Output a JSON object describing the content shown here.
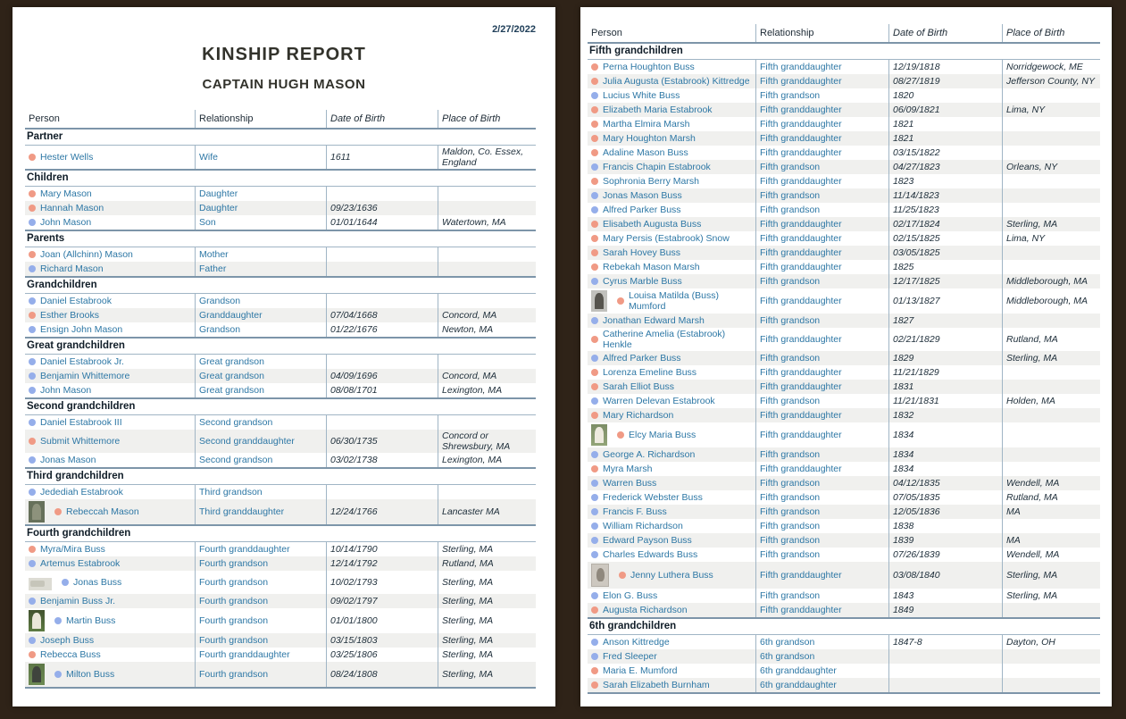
{
  "doc": {
    "date": "2/27/2022",
    "title": "KINSHIP REPORT",
    "subtitle": "CAPTAIN HUGH MASON"
  },
  "columns": [
    "Person",
    "Relationship",
    "Date of Birth",
    "Place of Birth"
  ],
  "colors": {
    "female_dot": "#f09a85",
    "male_dot": "#95aeea",
    "name_text": "#2d77a5",
    "dark_text": "#20303c",
    "line_thick": "#7d95a9",
    "line_thin": "#a0b5c5",
    "row_stripe": "#f0f0ee",
    "page_background": "#2f2318"
  },
  "left_page": {
    "sections": [
      {
        "title": "Partner",
        "rows": [
          {
            "name": "Hester Wells",
            "gender": "f",
            "relationship": "Wife",
            "date_of_birth": "1611",
            "place_of_birth": "Maldon, Co. Essex, England"
          }
        ]
      },
      {
        "title": "Children",
        "rows": [
          {
            "name": "Mary Mason",
            "gender": "f",
            "relationship": "Daughter",
            "date_of_birth": "",
            "place_of_birth": ""
          },
          {
            "name": "Hannah Mason",
            "gender": "f",
            "relationship": "Daughter",
            "date_of_birth": "09/23/1636",
            "place_of_birth": ""
          },
          {
            "name": "John Mason",
            "gender": "m",
            "relationship": "Son",
            "date_of_birth": "01/01/1644",
            "place_of_birth": "Watertown, MA"
          }
        ]
      },
      {
        "title": "Parents",
        "rows": [
          {
            "name": "Joan (Allchinn) Mason",
            "gender": "f",
            "relationship": "Mother",
            "date_of_birth": "",
            "place_of_birth": ""
          },
          {
            "name": "Richard Mason",
            "gender": "m",
            "relationship": "Father",
            "date_of_birth": "",
            "place_of_birth": ""
          }
        ]
      },
      {
        "title": "Grandchildren",
        "rows": [
          {
            "name": "Daniel Estabrook",
            "gender": "m",
            "relationship": "Grandson",
            "date_of_birth": "",
            "place_of_birth": ""
          },
          {
            "name": "Esther Brooks",
            "gender": "f",
            "relationship": "Granddaughter",
            "date_of_birth": "07/04/1668",
            "place_of_birth": "Concord, MA"
          },
          {
            "name": "Ensign John Mason",
            "gender": "m",
            "relationship": "Grandson",
            "date_of_birth": "01/22/1676",
            "place_of_birth": "Newton, MA"
          }
        ]
      },
      {
        "title": "Great grandchildren",
        "rows": [
          {
            "name": "Daniel Estabrook Jr.",
            "gender": "m",
            "relationship": "Great grandson",
            "date_of_birth": "",
            "place_of_birth": ""
          },
          {
            "name": "Benjamin Whittemore",
            "gender": "m",
            "relationship": "Great grandson",
            "date_of_birth": "04/09/1696",
            "place_of_birth": "Concord, MA"
          },
          {
            "name": "John Mason",
            "gender": "m",
            "relationship": "Great grandson",
            "date_of_birth": "08/08/1701",
            "place_of_birth": "Lexington, MA"
          }
        ]
      },
      {
        "title": "Second grandchildren",
        "rows": [
          {
            "name": "Daniel Estabrook III",
            "gender": "m",
            "relationship": "Second grandson",
            "date_of_birth": "",
            "place_of_birth": ""
          },
          {
            "name": "Submit Whittemore",
            "gender": "f",
            "relationship": "Second granddaughter",
            "date_of_birth": "06/30/1735",
            "place_of_birth": "Concord or Shrewsbury, MA"
          },
          {
            "name": "Jonas Mason",
            "gender": "m",
            "relationship": "Second grandson",
            "date_of_birth": "03/02/1738",
            "place_of_birth": "Lexington, MA"
          }
        ]
      },
      {
        "title": "Third grandchildren",
        "rows": [
          {
            "name": "Jedediah Estabrook",
            "gender": "m",
            "relationship": "Third grandson",
            "date_of_birth": "",
            "place_of_birth": ""
          },
          {
            "name": "Rebeccah Mason",
            "gender": "f",
            "photo": "grave-green",
            "relationship": "Third granddaughter",
            "date_of_birth": "12/24/1766",
            "place_of_birth": "Lancaster MA"
          }
        ]
      },
      {
        "title": "Fourth grandchildren",
        "rows": [
          {
            "name": "Myra/Mira Buss",
            "gender": "f",
            "relationship": "Fourth granddaughter",
            "date_of_birth": "10/14/1790",
            "place_of_birth": "Sterling, MA"
          },
          {
            "name": "Artemus Estabrook",
            "gender": "m",
            "relationship": "Fourth grandson",
            "date_of_birth": "12/14/1792",
            "place_of_birth": "Rutland, MA"
          },
          {
            "name": "Jonas Buss",
            "gender": "m",
            "photo": "photo-light",
            "relationship": "Fourth grandson",
            "date_of_birth": "10/02/1793",
            "place_of_birth": "Sterling, MA"
          },
          {
            "name": "Benjamin Buss Jr.",
            "gender": "m",
            "relationship": "Fourth grandson",
            "date_of_birth": "09/02/1797",
            "place_of_birth": "Sterling, MA"
          },
          {
            "name": "Martin Buss",
            "gender": "m",
            "photo": "grave-grass-white",
            "relationship": "Fourth grandson",
            "date_of_birth": "01/01/1800",
            "place_of_birth": "Sterling, MA"
          },
          {
            "name": "Joseph Buss",
            "gender": "m",
            "relationship": "Fourth grandson",
            "date_of_birth": "03/15/1803",
            "place_of_birth": "Sterling, MA"
          },
          {
            "name": "Rebecca Buss",
            "gender": "f",
            "relationship": "Fourth granddaughter",
            "date_of_birth": "03/25/1806",
            "place_of_birth": "Sterling, MA"
          },
          {
            "name": "Milton Buss",
            "gender": "m",
            "photo": "grave-grass-dark",
            "relationship": "Fourth grandson",
            "date_of_birth": "08/24/1808",
            "place_of_birth": "Sterling, MA"
          }
        ]
      }
    ]
  },
  "right_page": {
    "sections": [
      {
        "title": "Fifth grandchildren",
        "rows": [
          {
            "name": "Perna Houghton Buss",
            "gender": "f",
            "relationship": "Fifth granddaughter",
            "date_of_birth": "12/19/1818",
            "place_of_birth": "Norridgewock, ME"
          },
          {
            "name": "Julia Augusta (Estabrook) Kittredge",
            "gender": "f",
            "relationship": "Fifth granddaughter",
            "date_of_birth": "08/27/1819",
            "place_of_birth": "Jefferson County, NY"
          },
          {
            "name": "Lucius White Buss",
            "gender": "m",
            "relationship": "Fifth grandson",
            "date_of_birth": "1820",
            "place_of_birth": ""
          },
          {
            "name": "Elizabeth Maria Estabrook",
            "gender": "f",
            "relationship": "Fifth granddaughter",
            "date_of_birth": "06/09/1821",
            "place_of_birth": "Lima, NY"
          },
          {
            "name": "Martha Elmira Marsh",
            "gender": "f",
            "relationship": "Fifth granddaughter",
            "date_of_birth": "1821",
            "place_of_birth": ""
          },
          {
            "name": "Mary Houghton Marsh",
            "gender": "f",
            "relationship": "Fifth granddaughter",
            "date_of_birth": "1821",
            "place_of_birth": ""
          },
          {
            "name": "Adaline Mason Buss",
            "gender": "f",
            "relationship": "Fifth granddaughter",
            "date_of_birth": "03/15/1822",
            "place_of_birth": ""
          },
          {
            "name": "Francis Chapin Estabrook",
            "gender": "m",
            "relationship": "Fifth grandson",
            "date_of_birth": "04/27/1823",
            "place_of_birth": "Orleans, NY"
          },
          {
            "name": "Sophronia Berry Marsh",
            "gender": "f",
            "relationship": "Fifth granddaughter",
            "date_of_birth": "1823",
            "place_of_birth": ""
          },
          {
            "name": "Jonas Mason Buss",
            "gender": "m",
            "relationship": "Fifth grandson",
            "date_of_birth": "11/14/1823",
            "place_of_birth": ""
          },
          {
            "name": "Alfred Parker Buss",
            "gender": "m",
            "relationship": "Fifth grandson",
            "date_of_birth": "11/25/1823",
            "place_of_birth": ""
          },
          {
            "name": "Elisabeth Augusta Buss",
            "gender": "f",
            "relationship": "Fifth granddaughter",
            "date_of_birth": "02/17/1824",
            "place_of_birth": "Sterling, MA"
          },
          {
            "name": "Mary Persis (Estabrook) Snow",
            "gender": "f",
            "relationship": "Fifth granddaughter",
            "date_of_birth": "02/15/1825",
            "place_of_birth": "Lima, NY"
          },
          {
            "name": "Sarah Hovey Buss",
            "gender": "f",
            "relationship": "Fifth granddaughter",
            "date_of_birth": "03/05/1825",
            "place_of_birth": ""
          },
          {
            "name": "Rebekah Mason Marsh",
            "gender": "f",
            "relationship": "Fifth granddaughter",
            "date_of_birth": "1825",
            "place_of_birth": ""
          },
          {
            "name": "Cyrus Marble Buss",
            "gender": "m",
            "relationship": "Fifth grandson",
            "date_of_birth": "12/17/1825",
            "place_of_birth": "Middleborough, MA"
          },
          {
            "name": "Louisa Matilda (Buss) Mumford",
            "gender": "f",
            "photo": "grave-dark",
            "relationship": "Fifth granddaughter",
            "date_of_birth": "01/13/1827",
            "place_of_birth": "Middleborough, MA"
          },
          {
            "name": "Jonathan Edward Marsh",
            "gender": "m",
            "relationship": "Fifth grandson",
            "date_of_birth": "1827",
            "place_of_birth": ""
          },
          {
            "name": "Catherine Amelia (Estabrook) Henkle",
            "gender": "f",
            "relationship": "Fifth granddaughter",
            "date_of_birth": "02/21/1829",
            "place_of_birth": "Rutland, MA"
          },
          {
            "name": "Alfred Parker Buss",
            "gender": "m",
            "relationship": "Fifth grandson",
            "date_of_birth": "1829",
            "place_of_birth": "Sterling, MA"
          },
          {
            "name": "Lorenza Emeline Buss",
            "gender": "f",
            "relationship": "Fifth granddaughter",
            "date_of_birth": "11/21/1829",
            "place_of_birth": ""
          },
          {
            "name": "Sarah Elliot Buss",
            "gender": "f",
            "relationship": "Fifth granddaughter",
            "date_of_birth": "1831",
            "place_of_birth": ""
          },
          {
            "name": "Warren Delevan Estabrook",
            "gender": "m",
            "relationship": "Fifth grandson",
            "date_of_birth": "11/21/1831",
            "place_of_birth": "Holden, MA"
          },
          {
            "name": "Mary Richardson",
            "gender": "f",
            "relationship": "Fifth granddaughter",
            "date_of_birth": "1832",
            "place_of_birth": ""
          },
          {
            "name": "Elcy Maria Buss",
            "gender": "f",
            "photo": "grave-white",
            "relationship": "Fifth granddaughter",
            "date_of_birth": "1834",
            "place_of_birth": ""
          },
          {
            "name": "George A. Richardson",
            "gender": "m",
            "relationship": "Fifth grandson",
            "date_of_birth": "1834",
            "place_of_birth": ""
          },
          {
            "name": "Myra Marsh",
            "gender": "f",
            "relationship": "Fifth granddaughter",
            "date_of_birth": "1834",
            "place_of_birth": ""
          },
          {
            "name": "Warren Buss",
            "gender": "m",
            "relationship": "Fifth grandson",
            "date_of_birth": "04/12/1835",
            "place_of_birth": "Wendell, MA"
          },
          {
            "name": "Frederick Webster Buss",
            "gender": "m",
            "relationship": "Fifth grandson",
            "date_of_birth": "07/05/1835",
            "place_of_birth": "Rutland, MA"
          },
          {
            "name": "Francis F. Buss",
            "gender": "m",
            "relationship": "Fifth grandson",
            "date_of_birth": "12/05/1836",
            "place_of_birth": "MA"
          },
          {
            "name": "William Richardson",
            "gender": "m",
            "relationship": "Fifth grandson",
            "date_of_birth": "1838",
            "place_of_birth": ""
          },
          {
            "name": "Edward Payson Buss",
            "gender": "m",
            "relationship": "Fifth grandson",
            "date_of_birth": "1839",
            "place_of_birth": "MA"
          },
          {
            "name": "Charles Edwards Buss",
            "gender": "m",
            "relationship": "Fifth grandson",
            "date_of_birth": "07/26/1839",
            "place_of_birth": "Wendell, MA"
          },
          {
            "name": "Jenny Luthera Buss",
            "gender": "f",
            "photo": "portrait",
            "relationship": "Fifth granddaughter",
            "date_of_birth": "03/08/1840",
            "place_of_birth": "Sterling, MA"
          },
          {
            "name": "Elon G. Buss",
            "gender": "m",
            "relationship": "Fifth grandson",
            "date_of_birth": "1843",
            "place_of_birth": "Sterling, MA"
          },
          {
            "name": "Augusta Richardson",
            "gender": "f",
            "relationship": "Fifth granddaughter",
            "date_of_birth": "1849",
            "place_of_birth": ""
          }
        ]
      },
      {
        "title": "6th grandchildren",
        "rows": [
          {
            "name": "Anson Kittredge",
            "gender": "m",
            "relationship": "6th grandson",
            "date_of_birth": "1847-8",
            "place_of_birth": "Dayton, OH"
          },
          {
            "name": "Fred Sleeper",
            "gender": "m",
            "relationship": "6th grandson",
            "date_of_birth": "",
            "place_of_birth": ""
          },
          {
            "name": "Maria E. Mumford",
            "gender": "f",
            "relationship": "6th granddaughter",
            "date_of_birth": "",
            "place_of_birth": ""
          },
          {
            "name": "Sarah Elizabeth Burnham",
            "gender": "f",
            "relationship": "6th granddaughter",
            "date_of_birth": "",
            "place_of_birth": ""
          }
        ]
      }
    ]
  }
}
